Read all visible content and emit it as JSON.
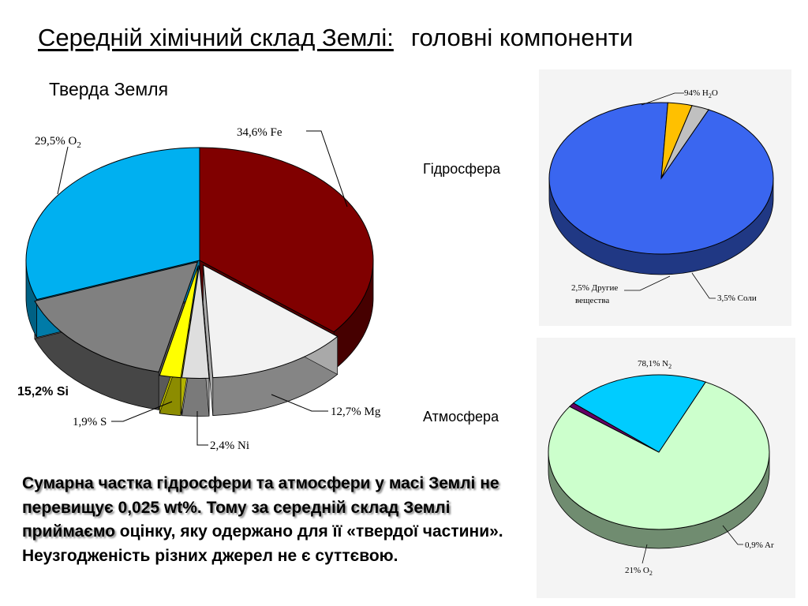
{
  "title": {
    "main": "Середній хімічний склад Землі:",
    "secondary": "головні компоненти"
  },
  "summary": {
    "part1": "Сумарна частка гідросфери та атмосфери у масі Землі не перевищує 0,025 wt%. Тому за середній склад Землі приймаємо",
    "part2": " оцінку, яку одержано для її «твердої частини». Неузгодженість різних джерел не є суттєвою."
  },
  "chart_data": [
    {
      "type": "pie",
      "title": "Тверда Земля",
      "style": "3d-exploded",
      "slices": [
        {
          "label": "Fe",
          "value": 34.6,
          "text": "34,6% Fe",
          "color": "#800000"
        },
        {
          "label": "Mg",
          "value": 12.7,
          "text": "12,7% Mg",
          "color": "#f2f2f2"
        },
        {
          "label": "Ni",
          "value": 2.4,
          "text": "2,4% Ni",
          "color": "#dedede"
        },
        {
          "label": "S",
          "value": 1.9,
          "text": "1,9% S",
          "color": "#ffff00"
        },
        {
          "label": "Si",
          "value": 15.2,
          "text": "15,2% Si",
          "color": "#808080"
        },
        {
          "label": "O2",
          "value": 29.5,
          "text": "29,5% O",
          "sub": "2",
          "color": "#00b0f0"
        }
      ]
    },
    {
      "type": "pie",
      "title": "Гідросфера",
      "style": "3d",
      "slices": [
        {
          "label": "H2O",
          "value": 94,
          "text": "94% H",
          "sub": "2",
          "tail": "O",
          "color": "#3a66f0"
        },
        {
          "label": "Соли",
          "value": 3.5,
          "text": "3,5% Соли",
          "color": "#ffc000"
        },
        {
          "label": "Другие вещества",
          "value": 2.5,
          "text": "2,5%  Другие",
          "text2": "вещества",
          "color": "#c0c0c0"
        }
      ]
    },
    {
      "type": "pie",
      "title": "Атмосфера",
      "style": "3d",
      "slices": [
        {
          "label": "N2",
          "value": 78.1,
          "text": "78,1% N",
          "sub": "2",
          "color": "#ccffcc"
        },
        {
          "label": "Ar",
          "value": 0.9,
          "text": "0,9% Ar",
          "color": "#660066"
        },
        {
          "label": "O2",
          "value": 21,
          "text": "21% O",
          "sub": "2",
          "color": "#00ccff"
        }
      ]
    }
  ]
}
